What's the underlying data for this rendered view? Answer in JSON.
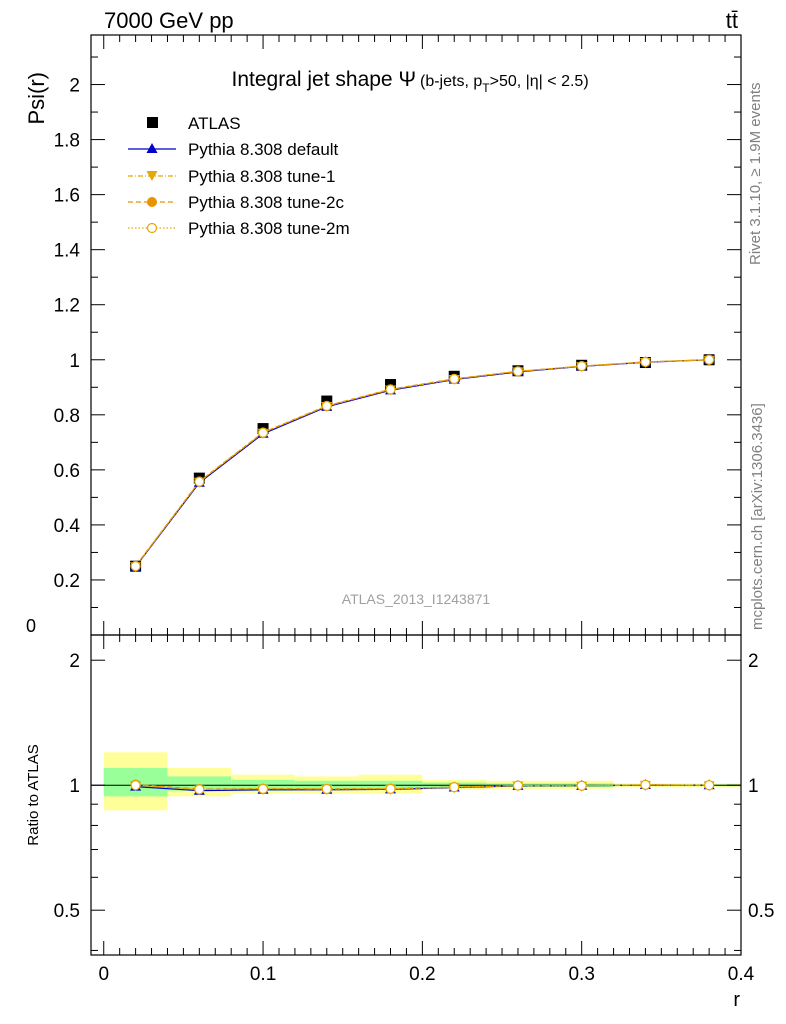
{
  "header": {
    "energy_label": "7000 GeV pp",
    "process_label": "tt̄"
  },
  "side_labels": {
    "rivet": "Rivet 3.1.10, ≥ 1.9M events",
    "mcplots": "mcplots.cern.ch [arXiv:1306.3436]"
  },
  "colors": {
    "atlas": "#000000",
    "default": "#0000cc",
    "tunes": "#e6a800",
    "tune_2c": "#e89400",
    "band_inner": "#99ff99",
    "band_outer": "#ffff99"
  },
  "chart_data": [
    {
      "type": "line",
      "title": "Integral jet shape Ψ",
      "title_sub": "(b-jets, p",
      "title_sub_T": "T",
      "title_sub_rest": ">50, |η| < 2.5)",
      "ylabel": "Psi(r)",
      "watermark": "ATLAS_2013_I1243871",
      "xlim": [
        -0.008,
        0.4
      ],
      "ylim": [
        0,
        2.18
      ],
      "yticks": [
        0.2,
        0.4,
        0.6,
        0.8,
        1,
        1.2,
        1.4,
        1.6,
        1.8,
        2
      ],
      "ytick_labels": [
        "0.2",
        "0.4",
        "0.6",
        "0.8",
        "1",
        "1.2",
        "1.4",
        "1.6",
        "1.8",
        "2"
      ],
      "legend": {
        "atlas": "ATLAS",
        "default": "Pythia 8.308 default",
        "tune1": "Pythia 8.308 tune-1",
        "tune2c": "Pythia 8.308 tune-2c",
        "tune2m": "Pythia 8.308 tune-2m"
      },
      "x": [
        0.02,
        0.06,
        0.1,
        0.14,
        0.18,
        0.22,
        0.26,
        0.3,
        0.34,
        0.38
      ],
      "series": [
        {
          "name": "ATLAS",
          "values": [
            0.25,
            0.57,
            0.75,
            0.85,
            0.91,
            0.94,
            0.96,
            0.98,
            0.99,
            1.0
          ]
        },
        {
          "name": "Pythia 8.308 default",
          "values": [
            0.248,
            0.553,
            0.731,
            0.829,
            0.889,
            0.928,
            0.956,
            0.976,
            0.991,
            1.0
          ]
        },
        {
          "name": "Pythia 8.308 tune-1",
          "values": [
            0.25,
            0.557,
            0.735,
            0.832,
            0.892,
            0.93,
            0.958,
            0.977,
            0.992,
            1.0
          ]
        },
        {
          "name": "Pythia 8.308 tune-2c",
          "values": [
            0.251,
            0.558,
            0.736,
            0.833,
            0.893,
            0.931,
            0.958,
            0.977,
            0.992,
            1.0
          ]
        },
        {
          "name": "Pythia 8.308 tune-2m",
          "values": [
            0.25,
            0.557,
            0.735,
            0.832,
            0.892,
            0.93,
            0.958,
            0.977,
            0.992,
            1.0
          ]
        }
      ]
    },
    {
      "type": "line",
      "ylabel": "Ratio to ATLAS",
      "xlabel": "r",
      "xlim": [
        -0.008,
        0.4
      ],
      "ylim": [
        0.39,
        2.3
      ],
      "yticks": [
        0.5,
        1,
        2
      ],
      "ytick_labels": [
        "0.5",
        "1",
        "2"
      ],
      "xticks": [
        0,
        0.1,
        0.2,
        0.3,
        0.4
      ],
      "xtick_labels": [
        "0",
        "0.1",
        "0.2",
        "0.3",
        "0.4"
      ],
      "band_edges": [
        0.0,
        0.04,
        0.08,
        0.12,
        0.16,
        0.2,
        0.24,
        0.28,
        0.32,
        0.36,
        0.4
      ],
      "band_inner": [
        [
          0.94,
          1.1
        ],
        [
          0.97,
          1.05
        ],
        [
          0.97,
          1.03
        ],
        [
          0.975,
          1.025
        ],
        [
          0.975,
          1.025
        ],
        [
          0.985,
          1.015
        ],
        [
          0.99,
          1.01
        ],
        [
          0.99,
          1.01
        ],
        [
          0.995,
          1.005
        ],
        [
          0.995,
          1.005
        ]
      ],
      "band_outer": [
        [
          0.87,
          1.2
        ],
        [
          0.94,
          1.1
        ],
        [
          0.955,
          1.06
        ],
        [
          0.955,
          1.05
        ],
        [
          0.955,
          1.06
        ],
        [
          0.975,
          1.03
        ],
        [
          0.98,
          1.025
        ],
        [
          0.98,
          1.025
        ],
        [
          0.99,
          1.01
        ],
        [
          0.99,
          1.01
        ]
      ],
      "x": [
        0.02,
        0.06,
        0.1,
        0.14,
        0.18,
        0.22,
        0.26,
        0.3,
        0.34,
        0.38
      ],
      "series": [
        {
          "name": "Pythia 8.308 default",
          "values": [
            0.992,
            0.97,
            0.975,
            0.975,
            0.977,
            0.987,
            0.996,
            0.996,
            1.001,
            1.0
          ]
        },
        {
          "name": "Pythia 8.308 tune-1",
          "values": [
            1.0,
            0.977,
            0.98,
            0.979,
            0.98,
            0.989,
            0.998,
            0.997,
            1.002,
            1.0
          ]
        },
        {
          "name": "Pythia 8.308 tune-2c",
          "values": [
            1.004,
            0.979,
            0.981,
            0.98,
            0.981,
            0.99,
            0.998,
            0.997,
            1.002,
            1.0
          ]
        },
        {
          "name": "Pythia 8.308 tune-2m",
          "values": [
            1.0,
            0.977,
            0.98,
            0.979,
            0.98,
            0.989,
            0.998,
            0.997,
            1.002,
            1.0
          ]
        }
      ]
    }
  ]
}
